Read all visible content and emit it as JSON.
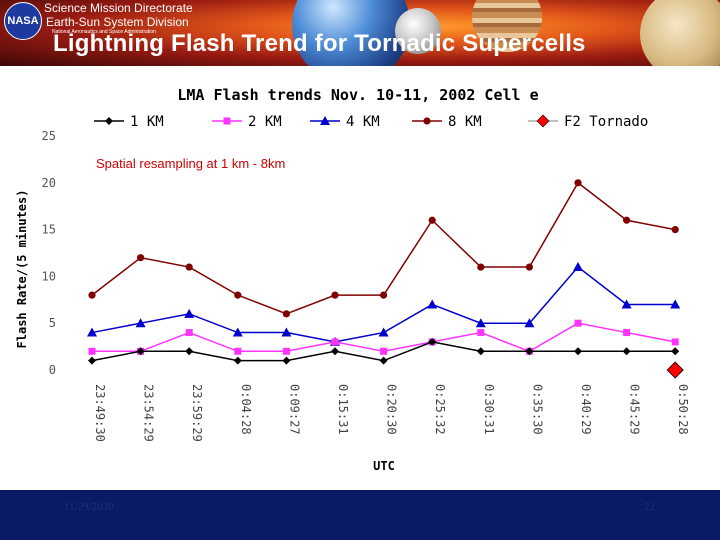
{
  "header": {
    "directorate": "Science Mission Directorate",
    "division": "Earth-Sun System Division",
    "agency": "National Aeronautics and Space Administration",
    "logo_text": "NASA",
    "slide_title": "Lightning Flash Trend for Tornadic Supercells"
  },
  "footer": {
    "date": "11/29/2020",
    "page": "22"
  },
  "chart_data": {
    "type": "line",
    "title": "LMA Flash trends Nov. 10-11, 2002 Cell e",
    "xlabel": "UTC",
    "ylabel": "Flash Rate/(5 minutes)",
    "annotation": "Spatial resampling  at 1 km - 8km",
    "ylim": [
      0,
      25
    ],
    "yticks": [
      "0",
      "5",
      "10",
      "15",
      "20",
      "25"
    ],
    "grid": false,
    "legend": "top",
    "categories": [
      "23:49:30",
      "23:54:29",
      "23:59:29",
      "0:04:28",
      "0:09:27",
      "0:15:31",
      "0:20:30",
      "0:25:32",
      "0:30:31",
      "0:35:30",
      "0:40:29",
      "0:45:29",
      "0:50:28"
    ],
    "series": [
      {
        "name": "1 KM",
        "color": "#000000",
        "marker": "diamond",
        "values": [
          1,
          2,
          2,
          1,
          1,
          2,
          1,
          3,
          2,
          2,
          2,
          2,
          2
        ]
      },
      {
        "name": "2 KM",
        "color": "#ff33ff",
        "marker": "square",
        "values": [
          2,
          2,
          4,
          2,
          2,
          3,
          2,
          3,
          4,
          2,
          5,
          4,
          3
        ]
      },
      {
        "name": "4 KM",
        "color": "#0000cc",
        "marker": "triangle",
        "values": [
          4,
          5,
          6,
          4,
          4,
          3,
          4,
          7,
          5,
          5,
          11,
          7,
          7
        ]
      },
      {
        "name": "8 KM",
        "color": "#800000",
        "marker": "circle",
        "values": [
          8,
          12,
          11,
          8,
          6,
          8,
          8,
          16,
          11,
          11,
          20,
          16,
          15
        ]
      },
      {
        "name": "F2 Tornado",
        "color": "#ff0000",
        "marker": "bigdiamond",
        "values": [
          null,
          null,
          null,
          null,
          null,
          null,
          null,
          null,
          null,
          null,
          null,
          null,
          0
        ]
      }
    ]
  }
}
